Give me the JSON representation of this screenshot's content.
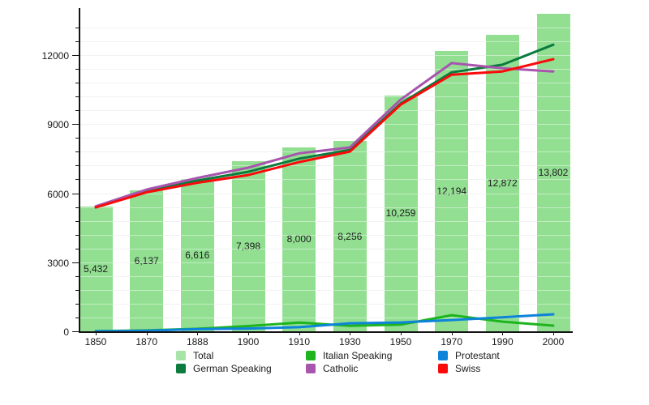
{
  "chart_data": {
    "type": "bar",
    "title": "",
    "xlabel": "",
    "ylabel": "",
    "categories": [
      "1850",
      "1870",
      "1888",
      "1900",
      "1910",
      "1930",
      "1950",
      "1970",
      "1990",
      "2000"
    ],
    "bars": {
      "name": "Total",
      "color": "#92df92",
      "legend_swatch_color": "#a7e4a7",
      "values": [
        5432,
        6137,
        6616,
        7398,
        8000,
        8256,
        10259,
        12194,
        12872,
        13802
      ],
      "labels": [
        "5,432",
        "6,137",
        "6,616",
        "7,398",
        "8,000",
        "8,256",
        "10,259",
        "12,194",
        "12,872",
        "13,802"
      ]
    },
    "series": [
      {
        "name": "German Speaking",
        "color": "#0c7b3e",
        "values": [
          5400,
          6080,
          6550,
          6930,
          7500,
          7880,
          9900,
          11250,
          11580,
          12450
        ]
      },
      {
        "name": "Italian Speaking",
        "color": "#1eb41e",
        "values": [
          10,
          40,
          110,
          230,
          380,
          240,
          290,
          700,
          420,
          245
        ]
      },
      {
        "name": "Catholic",
        "color": "#a855ae",
        "values": [
          5430,
          6160,
          6660,
          7110,
          7730,
          7990,
          10070,
          11650,
          11430,
          11290
        ]
      },
      {
        "name": "Protestant",
        "color": "#0d83da",
        "values": [
          5,
          25,
          90,
          120,
          180,
          350,
          385,
          490,
          610,
          740
        ]
      },
      {
        "name": "Swiss",
        "color": "#fa0a0a",
        "values": [
          5380,
          6040,
          6450,
          6790,
          7350,
          7810,
          9850,
          11150,
          11290,
          11820
        ]
      }
    ],
    "y_axis": {
      "tick_values": [
        0,
        3000,
        6000,
        9000,
        12000
      ],
      "tick_labels": [
        "0",
        "3000",
        "6000",
        "9000",
        "12000"
      ],
      "minor_step": 600,
      "ylim": [
        0,
        14040
      ],
      "grid": "minor horizontal gridlines on"
    },
    "legend_position": "bottom"
  },
  "legend": {
    "columns": [
      {
        "items": [
          {
            "label": "Total",
            "color": "#a7e4a7"
          },
          {
            "label": "German Speaking",
            "color": "#0c7b3e"
          }
        ]
      },
      {
        "items": [
          {
            "label": "Italian Speaking",
            "color": "#1eb41e"
          },
          {
            "label": "Catholic",
            "color": "#a855ae"
          }
        ]
      },
      {
        "items": [
          {
            "label": "Protestant",
            "color": "#0d83da"
          },
          {
            "label": "Swiss",
            "color": "#fa0a0a"
          }
        ]
      }
    ]
  }
}
